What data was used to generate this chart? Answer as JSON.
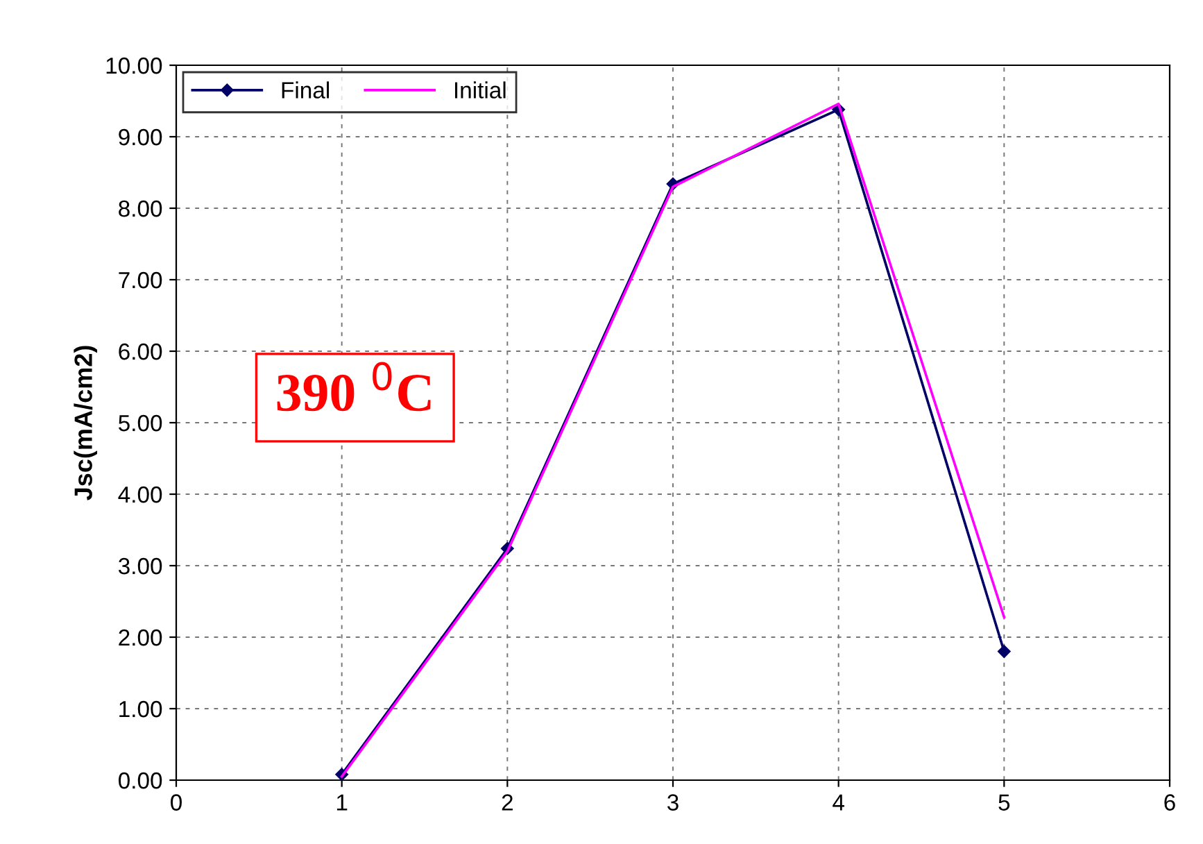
{
  "chart_data": {
    "type": "line",
    "ylabel": "Jsc(mA/cm2)",
    "x": [
      1,
      2,
      3,
      4,
      5
    ],
    "series": [
      {
        "name": "Final",
        "color": "#000066",
        "values": [
          0.08,
          3.24,
          8.34,
          9.38,
          1.8
        ],
        "marker": "diamond"
      },
      {
        "name": "Initial",
        "color": "#ff00ff",
        "values": [
          0.05,
          3.2,
          8.3,
          9.46,
          2.28
        ],
        "marker": "none"
      }
    ],
    "xlim": [
      0,
      6
    ],
    "xticks": [
      0,
      1,
      2,
      3,
      4,
      5,
      6
    ],
    "ylim": [
      0,
      10
    ],
    "yticks": [
      {
        "value": 0,
        "label": "0.00"
      },
      {
        "value": 1,
        "label": "1.00"
      },
      {
        "value": 2,
        "label": "2.00"
      },
      {
        "value": 3,
        "label": "3.00"
      },
      {
        "value": 4,
        "label": "4.00"
      },
      {
        "value": 5,
        "label": "5.00"
      },
      {
        "value": 6,
        "label": "6.00"
      },
      {
        "value": 7,
        "label": "7.00"
      },
      {
        "value": 8,
        "label": "8.00"
      },
      {
        "value": 9,
        "label": "9.00"
      },
      {
        "value": 10,
        "label": "10.00"
      }
    ],
    "grid": true,
    "legend": "top left",
    "line_style": "solid",
    "annotations": [
      "390 $^{0}$C"
    ]
  }
}
